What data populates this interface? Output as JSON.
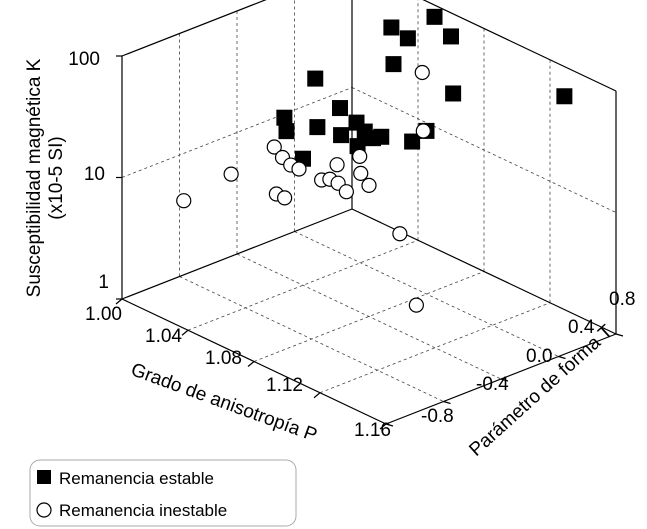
{
  "chart_data": {
    "type": "scatter",
    "title": "",
    "axes": {
      "x": {
        "label": "Grado de anisotropía P",
        "range": [
          1.0,
          1.16
        ],
        "ticks": [
          "1.00",
          "1.04",
          "1.08",
          "1.12",
          "1.16"
        ]
      },
      "y": {
        "label": "Parámetro de forma T",
        "range": [
          -0.8,
          0.8
        ],
        "ticks": [
          "-0.8",
          "-0.4",
          "0.0",
          "0.4",
          "0.8"
        ]
      },
      "z": {
        "label_line1": "Susceptibilidad magnética K",
        "label_line2": "(x10-5 SI)",
        "scale": "log",
        "range": [
          1,
          100
        ],
        "ticks": [
          "1",
          "10",
          "100"
        ]
      }
    },
    "legend": {
      "position": "bottom-left",
      "items": [
        {
          "label": "Remanencia estable",
          "marker": "filled-square",
          "color": "#000000"
        },
        {
          "label": "Remanencia inestable",
          "marker": "open-circle",
          "color": "#000000"
        }
      ]
    },
    "grid": true,
    "series": [
      {
        "name": "Remanencia estable",
        "marker": "filled-square",
        "points": [
          {
            "x": 1.05,
            "y": 0.5,
            "z": 90
          },
          {
            "x": 1.06,
            "y": 0.5,
            "z": 85
          },
          {
            "x": 1.06,
            "y": 0.4,
            "z": 58
          },
          {
            "x": 1.03,
            "y": 0.2,
            "z": 35
          },
          {
            "x": 1.045,
            "y": 0.2,
            "z": 25
          },
          {
            "x": 1.055,
            "y": 0.2,
            "z": 22
          },
          {
            "x": 1.06,
            "y": 0.2,
            "z": 20
          },
          {
            "x": 1.065,
            "y": 0.2,
            "z": 19
          },
          {
            "x": 1.07,
            "y": 0.2,
            "z": 21
          },
          {
            "x": 1.04,
            "y": 0.1,
            "z": 18
          },
          {
            "x": 1.05,
            "y": 0.15,
            "z": 17
          },
          {
            "x": 1.06,
            "y": 0.15,
            "z": 16
          },
          {
            "x": 1.08,
            "y": 0.3,
            "z": 20
          },
          {
            "x": 1.08,
            "y": 0.4,
            "z": 22
          },
          {
            "x": 1.03,
            "y": 0.0,
            "z": 16
          },
          {
            "x": 1.04,
            "y": 0.0,
            "z": 11
          },
          {
            "x": 1.02,
            "y": 0.1,
            "z": 16
          },
          {
            "x": 1.06,
            "y": 0.8,
            "z": 64
          },
          {
            "x": 1.05,
            "y": 0.8,
            "z": 80
          },
          {
            "x": 1.07,
            "y": 0.7,
            "z": 28
          },
          {
            "x": 1.12,
            "y": 0.9,
            "z": 45
          }
        ]
      },
      {
        "name": "Remanencia inestable",
        "marker": "open-circle",
        "points": [
          {
            "x": 1.02,
            "y": -0.6,
            "z": 7
          },
          {
            "x": 1.04,
            "y": -0.5,
            "z": 14
          },
          {
            "x": 1.04,
            "y": -0.2,
            "z": 17
          },
          {
            "x": 1.045,
            "y": -0.2,
            "z": 15
          },
          {
            "x": 1.05,
            "y": -0.2,
            "z": 14
          },
          {
            "x": 1.055,
            "y": -0.2,
            "z": 14
          },
          {
            "x": 1.05,
            "y": -0.3,
            "z": 9
          },
          {
            "x": 1.055,
            "y": -0.3,
            "z": 9
          },
          {
            "x": 1.06,
            "y": -0.1,
            "z": 11
          },
          {
            "x": 1.065,
            "y": -0.1,
            "z": 12
          },
          {
            "x": 1.07,
            "y": -0.1,
            "z": 12
          },
          {
            "x": 1.075,
            "y": -0.1,
            "z": 11
          },
          {
            "x": 1.065,
            "y": -0.05,
            "z": 15
          },
          {
            "x": 1.07,
            "y": 0.05,
            "z": 17
          },
          {
            "x": 1.075,
            "y": 0.0,
            "z": 14
          },
          {
            "x": 1.08,
            "y": 0.0,
            "z": 12
          },
          {
            "x": 1.09,
            "y": 0.1,
            "z": 5
          },
          {
            "x": 1.1,
            "y": 0.1,
            "z": 1.5
          },
          {
            "x": 1.06,
            "y": 0.6,
            "z": 40
          },
          {
            "x": 1.07,
            "y": 0.5,
            "z": 17
          },
          {
            "x": 1.065,
            "y": 0.55,
            "z": 15
          }
        ]
      }
    ]
  }
}
